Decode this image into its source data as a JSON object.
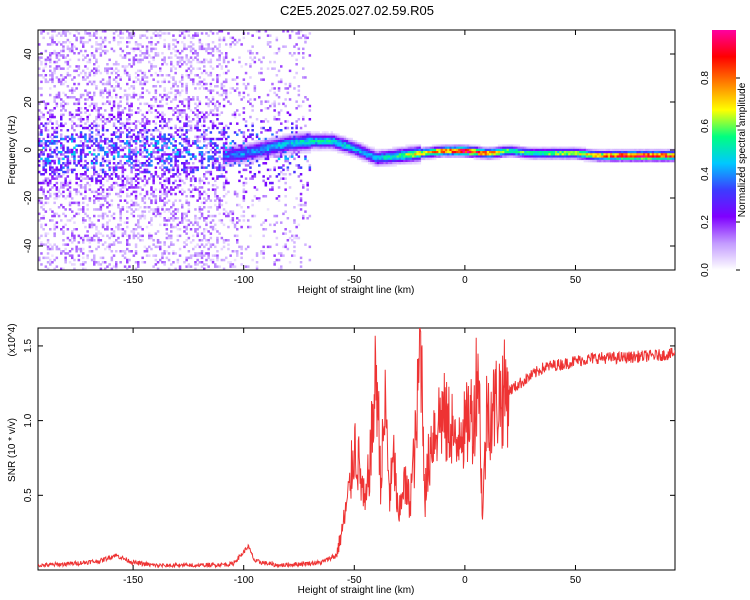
{
  "figure_title": "C2E5.2025.027.02.59.R05",
  "chart_data": [
    {
      "type": "heatmap",
      "title": "C2E5.2025.027.02.59.R05",
      "xlabel": "Height of straight line (km)",
      "ylabel": "Frequency (Hz)",
      "xlim": [
        -193,
        95
      ],
      "ylim": [
        -50,
        50
      ],
      "xticks": [
        -150,
        -100,
        -50,
        0,
        50
      ],
      "yticks": [
        -40,
        -20,
        0,
        20,
        40
      ],
      "colorbar": {
        "label": "Normalized spectral amplitude",
        "range": [
          0,
          1
        ],
        "ticks": [
          0.0,
          0.2,
          0.4,
          0.6,
          0.8
        ],
        "colormap": [
          "#ffffff",
          "#c39bff",
          "#7f00ff",
          "#3c3cff",
          "#00c8ff",
          "#00ff80",
          "#ffff00",
          "#ff8000",
          "#ff0000",
          "#ff00a0"
        ]
      },
      "ridge": {
        "description_points_height_km": [
          -108,
          -100,
          -90,
          -80,
          -70,
          -60,
          -50,
          -40,
          -30,
          -20,
          -10,
          0,
          10,
          20,
          30,
          40,
          50,
          60,
          70,
          80,
          95
        ],
        "frequency_hz": [
          -2,
          -1,
          1,
          3,
          4,
          4,
          1,
          -3,
          -2,
          -1,
          0,
          0,
          -1,
          0,
          -1,
          -1,
          -1,
          -2,
          -2,
          -2,
          -2
        ],
        "peak_amplitude": [
          0.35,
          0.4,
          0.42,
          0.45,
          0.5,
          0.5,
          0.45,
          0.45,
          0.55,
          0.7,
          0.8,
          0.95,
          0.8,
          0.6,
          0.55,
          0.6,
          0.65,
          0.75,
          0.9,
          0.95,
          0.85
        ]
      },
      "noise_region_km": [
        -193,
        -70
      ]
    },
    {
      "type": "line",
      "xlabel": "Height of straight line (km)",
      "ylabel": "SNR (10 * v/v)",
      "y_multiplier": "(x10^4)",
      "xlim": [
        -193,
        95
      ],
      "ylim": [
        0,
        1.62
      ],
      "xticks": [
        -150,
        -100,
        -50,
        0,
        50
      ],
      "yticks": [
        0.5,
        1.0,
        1.5
      ],
      "color": "#ee3333",
      "series": [
        {
          "x": [
            -193,
            -180,
            -165,
            -158,
            -150,
            -140,
            -120,
            -105,
            -100,
            -98,
            -95,
            -85,
            -75,
            -65,
            -58,
            -55,
            -52,
            -50,
            -48,
            -45,
            -42,
            -40,
            -38,
            -36,
            -34,
            -32,
            -30,
            -28,
            -25,
            -22,
            -20,
            -18,
            -15,
            -12,
            -10,
            -8,
            -6,
            -4,
            -2,
            0,
            2,
            4,
            6,
            8,
            10,
            12,
            15,
            20,
            25,
            30,
            35,
            40,
            45,
            50,
            55,
            60,
            70,
            80,
            90,
            95
          ],
          "y": [
            0.03,
            0.04,
            0.06,
            0.1,
            0.05,
            0.03,
            0.03,
            0.04,
            0.12,
            0.16,
            0.06,
            0.03,
            0.04,
            0.05,
            0.1,
            0.3,
            0.55,
            0.85,
            0.7,
            0.4,
            0.9,
            1.35,
            0.6,
            1.1,
            0.5,
            0.75,
            0.3,
            0.6,
            0.45,
            0.9,
            1.6,
            0.5,
            0.9,
            1.0,
            1.05,
            0.95,
            1.0,
            0.75,
            1.05,
            0.9,
            1.05,
            1.0,
            1.45,
            0.35,
            1.1,
            1.05,
            1.15,
            1.2,
            1.25,
            1.3,
            1.35,
            1.37,
            1.38,
            1.4,
            1.41,
            1.42,
            1.42,
            1.43,
            1.44,
            1.45
          ]
        }
      ]
    }
  ]
}
